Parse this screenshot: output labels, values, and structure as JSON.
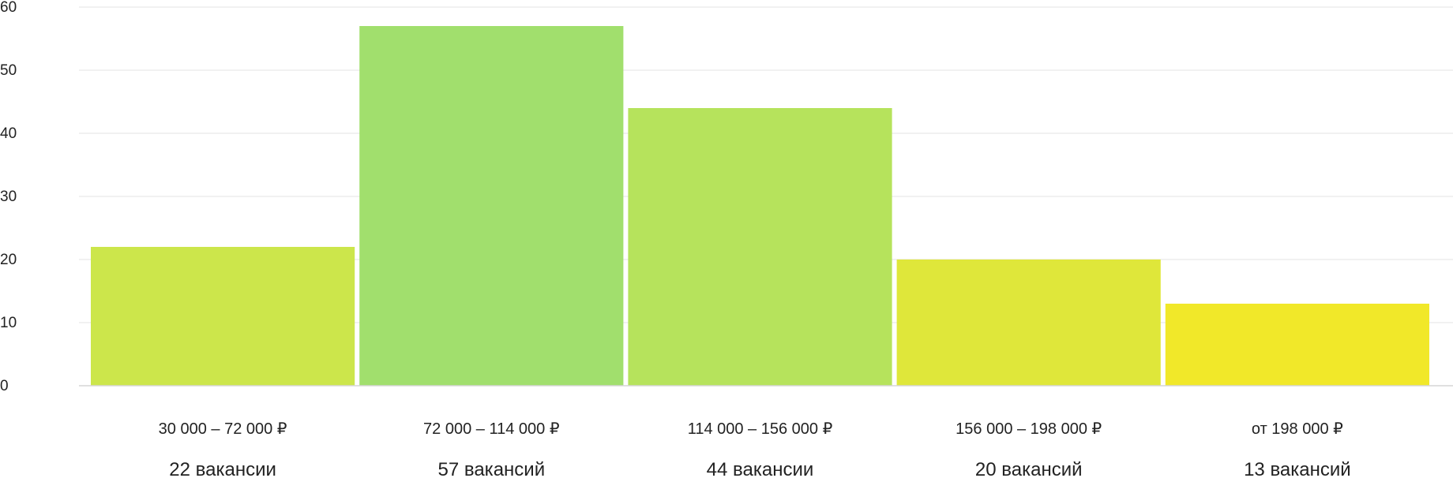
{
  "chart_data": {
    "type": "bar",
    "categories": [
      "30 000 – 72 000 ₽",
      "72 000 – 114 000 ₽",
      "114 000 – 156 000 ₽",
      "156 000 – 198 000 ₽",
      "от 198 000 ₽"
    ],
    "values": [
      22,
      57,
      44,
      20,
      13
    ],
    "count_labels": [
      "22 вакансии",
      "57 вакансий",
      "44 вакансии",
      "20 вакансий",
      "13 вакансий"
    ],
    "colors": [
      "#cce64b",
      "#a1df6d",
      "#b6e35c",
      "#dfe73a",
      "#f1e829"
    ],
    "ylim": [
      0,
      60
    ],
    "yticks": [
      "0",
      "10",
      "20",
      "30",
      "40",
      "50",
      "60"
    ],
    "grid": true,
    "legend": "none",
    "title": "",
    "xlabel": "",
    "ylabel": ""
  }
}
